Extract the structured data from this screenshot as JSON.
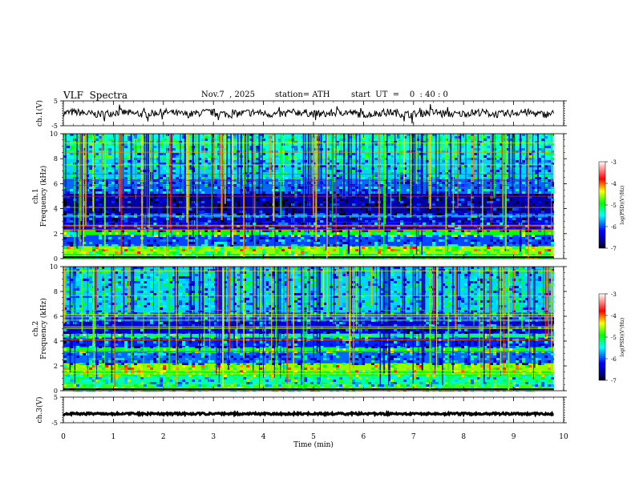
{
  "header": {
    "title": "VLF  Spectra",
    "date": "Nov.7  , 2025",
    "station": "station= ATH",
    "start_ut": "start  UT  =    0  : 40 : 0"
  },
  "chart_data": [
    {
      "type": "line",
      "panel": "ch1-waveform",
      "ylabel": "ch.1(V)",
      "ylim": [
        -5,
        5
      ],
      "yticks": [
        "5",
        "-5"
      ],
      "baseline": 0,
      "x_range": [
        0,
        9.8
      ],
      "color": "#000000"
    },
    {
      "type": "heatmap",
      "panel": "ch1-spectrogram",
      "ylabel": "Frequency (kHz)",
      "channel_label": "ch.1",
      "ylim": [
        0,
        10
      ],
      "yticks": [
        "0",
        "2",
        "4",
        "6",
        "8",
        "10"
      ],
      "x_range": [
        0,
        9.8
      ],
      "bands_khz": [
        {
          "from": 0.0,
          "to": 0.4,
          "level": -5.0
        },
        {
          "from": 0.4,
          "to": 1.0,
          "level": -4.6
        },
        {
          "from": 1.0,
          "to": 1.9,
          "level": -6.0
        },
        {
          "from": 1.9,
          "to": 2.3,
          "level": -4.9
        },
        {
          "from": 2.3,
          "to": 2.9,
          "level": -6.2
        },
        {
          "from": 2.9,
          "to": 3.3,
          "level": -6.4
        },
        {
          "from": 3.3,
          "to": 3.6,
          "level": -5.8
        },
        {
          "from": 3.6,
          "to": 5.2,
          "level": -6.6
        },
        {
          "from": 5.2,
          "to": 6.4,
          "level": -5.9
        },
        {
          "from": 6.4,
          "to": 8.0,
          "level": -5.6
        },
        {
          "from": 8.0,
          "to": 10.0,
          "level": -5.4
        }
      ],
      "colorbar": {
        "label": "log(PSD)(V²/Hz)",
        "ticks": [
          "-3",
          "-4",
          "-5",
          "-6",
          "-7"
        ],
        "range": [
          -7,
          -3
        ]
      }
    },
    {
      "type": "heatmap",
      "panel": "ch2-spectrogram",
      "ylabel": "Frequency (kHz)",
      "channel_label": "ch.2",
      "ylim": [
        0,
        10
      ],
      "yticks": [
        "0",
        "2",
        "4",
        "6",
        "8",
        "10"
      ],
      "x_range": [
        0,
        9.8
      ],
      "bands_khz": [
        {
          "from": 0.0,
          "to": 0.5,
          "level": -4.8
        },
        {
          "from": 0.5,
          "to": 1.2,
          "level": -5.3
        },
        {
          "from": 1.2,
          "to": 1.6,
          "level": -4.9
        },
        {
          "from": 1.6,
          "to": 2.2,
          "level": -4.6
        },
        {
          "from": 2.2,
          "to": 3.1,
          "level": -5.9
        },
        {
          "from": 3.1,
          "to": 3.5,
          "level": -5.0
        },
        {
          "from": 3.5,
          "to": 4.3,
          "level": -6.1
        },
        {
          "from": 4.3,
          "to": 4.6,
          "level": -5.2
        },
        {
          "from": 4.6,
          "to": 5.6,
          "level": -6.3
        },
        {
          "from": 5.6,
          "to": 6.3,
          "level": -6.0
        },
        {
          "from": 6.3,
          "to": 10.0,
          "level": -5.6
        }
      ],
      "colorbar": {
        "label": "log(PSD)(V²/Hz)",
        "ticks": [
          "-3",
          "-4",
          "-5",
          "-6",
          "-7"
        ],
        "range": [
          -7,
          -3
        ]
      }
    },
    {
      "type": "line",
      "panel": "ch3-waveform",
      "ylabel": "ch.3(V)",
      "ylim": [
        -5,
        5
      ],
      "yticks": [
        "5",
        "-5"
      ],
      "baseline": -1.5,
      "x_range": [
        0,
        9.8
      ],
      "color": "#000000"
    }
  ],
  "xaxis": {
    "label": "Time  (min)",
    "range": [
      0,
      10
    ],
    "ticks": [
      "0",
      "1",
      "2",
      "3",
      "4",
      "5",
      "6",
      "7",
      "8",
      "9",
      "10"
    ]
  }
}
